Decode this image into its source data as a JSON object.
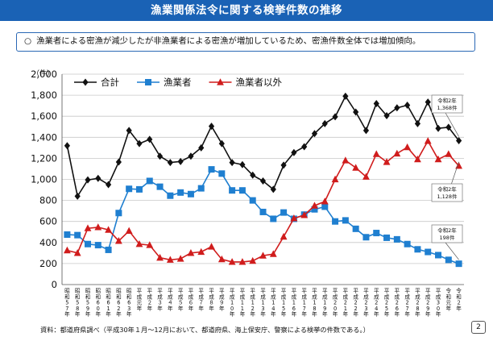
{
  "header": {
    "title": "漁業関係法令に関する検挙件数の推移"
  },
  "summary": {
    "marker": "○",
    "text": "漁業者による密漁が減少したが非漁業者による密漁が増加しているため、密漁件数全体では増加傾向。"
  },
  "footnote": "資料：都道府県調べ（平成30年１月～12月において、都道府県、海上保安庁、警察による検挙の件数である。）",
  "page_number": "2",
  "chart_data": {
    "type": "line",
    "y_unit": "（件）",
    "ylim": [
      0,
      2000
    ],
    "yticks": [
      "0",
      "200",
      "400",
      "600",
      "800",
      "1,000",
      "1,200",
      "1,400",
      "1,600",
      "1,800",
      "2,000"
    ],
    "categories": [
      "昭和57年",
      "昭和58年",
      "昭和59年",
      "昭和60年",
      "昭和61年",
      "昭和62年",
      "昭和63年",
      "平成元年",
      "平成２年",
      "平成３年",
      "平成４年",
      "平成５年",
      "平成６年",
      "平成７年",
      "平成８年",
      "平成９年",
      "平成10年",
      "平成11年",
      "平成12年",
      "平成13年",
      "平成14年",
      "平成15年",
      "平成16年",
      "平成17年",
      "平成18年",
      "平成19年",
      "平成20年",
      "平成21年",
      "平成22年",
      "平成23年",
      "平成24年",
      "平成25年",
      "平成26年",
      "平成27年",
      "平成28年",
      "平成29年",
      "平成30年",
      "令和元年",
      "令和２年"
    ],
    "legend_position": "top-left",
    "grid": true,
    "series": [
      {
        "name": "合計",
        "color": "#111111",
        "marker": "diamond",
        "values": [
          1320,
          840,
          995,
          1010,
          950,
          1165,
          1465,
          1340,
          1380,
          1220,
          1160,
          1170,
          1220,
          1300,
          1505,
          1340,
          1160,
          1140,
          1040,
          985,
          905,
          1135,
          1255,
          1310,
          1435,
          1530,
          1595,
          1790,
          1640,
          1465,
          1720,
          1605,
          1680,
          1705,
          1530,
          1735,
          1485,
          1495,
          1368
        ]
      },
      {
        "name": "漁業者",
        "color": "#1f7fd0",
        "marker": "square",
        "values": [
          475,
          470,
          385,
          375,
          330,
          680,
          910,
          905,
          985,
          930,
          845,
          875,
          860,
          915,
          1095,
          1055,
          895,
          895,
          800,
          690,
          625,
          685,
          625,
          665,
          715,
          740,
          600,
          610,
          530,
          450,
          490,
          445,
          430,
          385,
          335,
          310,
          280,
          235,
          198
        ]
      },
      {
        "name": "漁業者以外",
        "color": "#d01c1c",
        "marker": "triangle",
        "values": [
          325,
          300,
          535,
          545,
          520,
          415,
          510,
          385,
          375,
          255,
          235,
          245,
          300,
          310,
          360,
          240,
          215,
          215,
          225,
          275,
          290,
          455,
          630,
          660,
          750,
          790,
          1000,
          1180,
          1110,
          1025,
          1240,
          1165,
          1245,
          1305,
          1190,
          1365,
          1190,
          1240,
          1128
        ]
      }
    ],
    "annotations": [
      {
        "series": "合計",
        "text_lines": [
          "令和2年",
          "1,368件"
        ]
      },
      {
        "series": "漁業者以外",
        "text_lines": [
          "令和2年",
          "1,128件"
        ]
      },
      {
        "series": "漁業者",
        "text_lines": [
          "令和2年",
          "198件"
        ]
      }
    ]
  }
}
